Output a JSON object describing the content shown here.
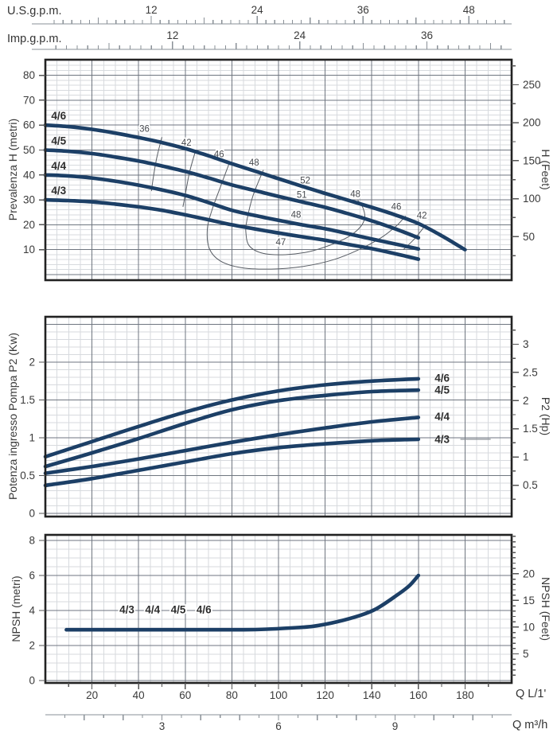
{
  "colors": {
    "curve": "#1c3f66",
    "grid_minor": "#d7dade",
    "grid_major": "#6f7680",
    "frame": "#222222",
    "axis_line": "#8a9097",
    "text": "#3a3a3a",
    "iso_line": "#585d64",
    "model_label": "#2d2d2d"
  },
  "axes_top": {
    "us": {
      "title": "U.S.g.p.m.",
      "unit_lpm": 3.785,
      "labels": [
        12,
        24,
        36,
        48
      ],
      "minor_step": 1,
      "mid_step": 6,
      "max": 52
    },
    "imp": {
      "title": "Imp.g.p.m.",
      "unit_lpm": 4.546,
      "labels": [
        12,
        24,
        36
      ],
      "minor_step": 1,
      "mid_step": 6,
      "max": 43
    }
  },
  "axes_bottom": {
    "lpm": {
      "title": "Q L/1'",
      "labels": [
        20,
        40,
        60,
        80,
        100,
        120,
        140,
        160,
        180
      ],
      "minor_step": 10,
      "max": 190
    },
    "m3h": {
      "title": "Q m³/h",
      "unit_lpm": 16.667,
      "labels": [
        3,
        6,
        9
      ],
      "minor_step": 0.5,
      "max": 11.5
    }
  },
  "chart_data": [
    {
      "type": "line",
      "id": "head",
      "ylabel_left": "Prevalenza H (metri)",
      "ylabel_right": "H (Feet)",
      "x_unit": "Q L/1'",
      "xlim": [
        0,
        200
      ],
      "ylim": [
        0,
        88
      ],
      "yticks_left": [
        10,
        20,
        30,
        40,
        50,
        60,
        70,
        80
      ],
      "yticks_right": [
        50,
        100,
        150,
        200,
        250
      ],
      "right_unit": "Feet",
      "series": [
        {
          "name": "4/6",
          "points": [
            [
              0,
              60
            ],
            [
              10,
              59.4
            ],
            [
              20,
              58.3
            ],
            [
              30,
              56.8
            ],
            [
              40,
              55
            ],
            [
              50,
              53
            ],
            [
              60,
              50.6
            ],
            [
              70,
              47.7
            ],
            [
              80,
              44.5
            ],
            [
              90,
              41.5
            ],
            [
              100,
              38.5
            ],
            [
              110,
              35.5
            ],
            [
              120,
              32.6
            ],
            [
              130,
              29.8
            ],
            [
              140,
              27
            ],
            [
              150,
              24
            ],
            [
              160,
              20.5
            ],
            [
              170,
              15.6
            ],
            [
              180,
              10
            ]
          ]
        },
        {
          "name": "4/5",
          "points": [
            [
              0,
              50
            ],
            [
              10,
              49.5
            ],
            [
              20,
              48.6
            ],
            [
              30,
              47.2
            ],
            [
              40,
              45.6
            ],
            [
              50,
              43.6
            ],
            [
              60,
              41.4
            ],
            [
              70,
              38.8
            ],
            [
              80,
              36
            ],
            [
              90,
              33.7
            ],
            [
              100,
              31.4
            ],
            [
              110,
              29.2
            ],
            [
              120,
              27
            ],
            [
              130,
              24.4
            ],
            [
              140,
              21.6
            ],
            [
              150,
              18.4
            ],
            [
              160,
              14.8
            ]
          ]
        },
        {
          "name": "4/4",
          "points": [
            [
              0,
              40
            ],
            [
              10,
              39.6
            ],
            [
              20,
              38.8
            ],
            [
              30,
              37.5
            ],
            [
              40,
              35.9
            ],
            [
              50,
              34
            ],
            [
              60,
              31.8
            ],
            [
              70,
              28.9
            ],
            [
              80,
              25.8
            ],
            [
              90,
              23.7
            ],
            [
              100,
              21.8
            ],
            [
              110,
              20
            ],
            [
              120,
              18.4
            ],
            [
              130,
              16.4
            ],
            [
              140,
              14.3
            ],
            [
              150,
              12.3
            ],
            [
              160,
              10.3
            ]
          ]
        },
        {
          "name": "4/3",
          "points": [
            [
              0,
              30
            ],
            [
              10,
              29.7
            ],
            [
              20,
              29.2
            ],
            [
              30,
              28.3
            ],
            [
              40,
              27.2
            ],
            [
              50,
              25.8
            ],
            [
              60,
              24
            ],
            [
              70,
              22
            ],
            [
              80,
              20
            ],
            [
              90,
              18.3
            ],
            [
              100,
              16.7
            ],
            [
              110,
              15.2
            ],
            [
              120,
              13.8
            ],
            [
              130,
              12.1
            ],
            [
              140,
              10.4
            ],
            [
              150,
              8.4
            ],
            [
              160,
              6.2
            ]
          ]
        }
      ],
      "series_labels": [
        {
          "text": "4/6",
          "q": 2.5,
          "v": 62.3
        },
        {
          "text": "4/5",
          "q": 2.5,
          "v": 52.2
        },
        {
          "text": "4/4",
          "q": 2.5,
          "v": 42.2
        },
        {
          "text": "4/3",
          "q": 2.5,
          "v": 32.2
        }
      ],
      "iso_lines": [
        {
          "label": "36",
          "at": [
            42.5,
            57.3
          ],
          "points": [
            [
              50,
              55.2
            ],
            [
              47.8,
              47
            ],
            [
              46.3,
              39
            ],
            [
              45.5,
              33.5
            ]
          ]
        },
        {
          "label": "42",
          "at": [
            60.5,
            51.7
          ],
          "points": [
            [
              64.5,
              50
            ],
            [
              61.8,
              41
            ],
            [
              60,
              32
            ],
            [
              59,
              27.2
            ]
          ]
        },
        {
          "label": "46",
          "at": [
            74.5,
            47.2
          ],
          "points": [
            [
              79,
              45
            ],
            [
              75,
              35
            ],
            [
              71.5,
              26
            ],
            [
              69.5,
              18.5
            ],
            [
              70.3,
              10.5
            ],
            [
              75,
              5.5
            ],
            [
              84,
              2.8
            ],
            [
              97,
              2.2
            ],
            [
              110,
              3.2
            ],
            [
              123,
              5.8
            ],
            [
              134,
              9.8
            ],
            [
              144,
              14.8
            ],
            [
              150.5,
              19.5
            ],
            [
              154.5,
              23.5
            ]
          ]
        },
        {
          "label": "48",
          "at": [
            89.5,
            43.8
          ],
          "points": [
            [
              93.5,
              42
            ],
            [
              89,
              31.5
            ],
            [
              86.5,
              22
            ],
            [
              86,
              17
            ],
            [
              87.5,
              11.5
            ],
            [
              93.5,
              8.5
            ],
            [
              103,
              8
            ],
            [
              113,
              9.2
            ],
            [
              122,
              11.8
            ],
            [
              130,
              15.2
            ],
            [
              135,
              19
            ],
            [
              137,
              22.8
            ],
            [
              136.2,
              26.8
            ],
            [
              134,
              29.8
            ]
          ]
        },
        {
          "label": "52",
          "at": [
            111.5,
            36.6
          ]
        },
        {
          "label": "51",
          "at": [
            110,
            30.8
          ]
        },
        {
          "label": "48",
          "at": [
            107.5,
            22.8
          ]
        },
        {
          "label": "47",
          "at": [
            101,
            11.8
          ]
        },
        {
          "label": "48",
          "at": [
            133,
            31.2
          ]
        },
        {
          "label": "46",
          "at": [
            150.5,
            26
          ]
        },
        {
          "label": "42",
          "at": [
            161.5,
            22.6
          ],
          "points": [
            [
              163,
              19.8
            ],
            [
              158.5,
              14.5
            ],
            [
              153.5,
              10
            ]
          ]
        }
      ]
    },
    {
      "type": "line",
      "id": "power",
      "ylabel_left": "Potenza ingresso Pompa P2 (Kw)",
      "ylabel_right": "P2 (Hp)",
      "x_unit": "Q L/1'",
      "xlim": [
        0,
        200
      ],
      "ylim": [
        0,
        2.6
      ],
      "yticks_left": [
        0,
        0.5,
        1,
        1.5,
        2
      ],
      "yticks_right": [
        0.5,
        1,
        1.5,
        2,
        2.5,
        3
      ],
      "right_unit": "Hp",
      "series": [
        {
          "name": "4/6",
          "points": [
            [
              0,
              0.75
            ],
            [
              20,
              0.95
            ],
            [
              40,
              1.15
            ],
            [
              60,
              1.34
            ],
            [
              80,
              1.5
            ],
            [
              100,
              1.62
            ],
            [
              120,
              1.7
            ],
            [
              140,
              1.75
            ],
            [
              160,
              1.78
            ]
          ]
        },
        {
          "name": "4/5",
          "points": [
            [
              0,
              0.62
            ],
            [
              20,
              0.8
            ],
            [
              40,
              0.99
            ],
            [
              60,
              1.19
            ],
            [
              80,
              1.37
            ],
            [
              100,
              1.49
            ],
            [
              120,
              1.56
            ],
            [
              140,
              1.61
            ],
            [
              160,
              1.63
            ]
          ]
        },
        {
          "name": "4/4",
          "points": [
            [
              0,
              0.53
            ],
            [
              20,
              0.62
            ],
            [
              40,
              0.72
            ],
            [
              60,
              0.83
            ],
            [
              80,
              0.94
            ],
            [
              100,
              1.04
            ],
            [
              120,
              1.13
            ],
            [
              140,
              1.21
            ],
            [
              160,
              1.27
            ]
          ]
        },
        {
          "name": "4/3",
          "points": [
            [
              0,
              0.37
            ],
            [
              20,
              0.46
            ],
            [
              40,
              0.57
            ],
            [
              60,
              0.68
            ],
            [
              80,
              0.79
            ],
            [
              100,
              0.87
            ],
            [
              120,
              0.92
            ],
            [
              140,
              0.96
            ],
            [
              160,
              0.98
            ]
          ]
        }
      ],
      "end_labels": [
        {
          "text": "4/6",
          "q": 167,
          "v": 1.79
        },
        {
          "text": "4/5",
          "q": 167,
          "v": 1.63
        },
        {
          "text": "4/4",
          "q": 167,
          "v": 1.28
        },
        {
          "text": "4/3",
          "q": 167,
          "v": 0.98,
          "leader": [
            178,
            191
          ]
        }
      ]
    },
    {
      "type": "line",
      "id": "npsh",
      "ylabel_left": "NPSH (metri)",
      "ylabel_right": "NPSH (Feet)",
      "x_unit": "Q L/1'",
      "ylim": [
        0,
        8
      ],
      "xlim": [
        0,
        200
      ],
      "yticks_left": [
        0,
        2,
        4,
        6,
        8
      ],
      "yticks_right": [
        5,
        10,
        15,
        20
      ],
      "right_unit": "Feet",
      "series": [
        {
          "name": "4/3 4/4 4/5 4/6",
          "points": [
            [
              9,
              2.9
            ],
            [
              30,
              2.9
            ],
            [
              50,
              2.9
            ],
            [
              70,
              2.9
            ],
            [
              85,
              2.9
            ],
            [
              95,
              2.93
            ],
            [
              105,
              3
            ],
            [
              115,
              3.1
            ],
            [
              125,
              3.35
            ],
            [
              135,
              3.72
            ],
            [
              142,
              4.1
            ],
            [
              150,
              4.8
            ],
            [
              156,
              5.4
            ],
            [
              160,
              6
            ]
          ]
        }
      ],
      "inline_labels": [
        {
          "text": "4/3",
          "q": 35,
          "v": 4.05
        },
        {
          "text": "4/4",
          "q": 46,
          "v": 4.05
        },
        {
          "text": "4/5",
          "q": 57,
          "v": 4.05
        },
        {
          "text": "4/6",
          "q": 68,
          "v": 4.05
        }
      ]
    }
  ]
}
